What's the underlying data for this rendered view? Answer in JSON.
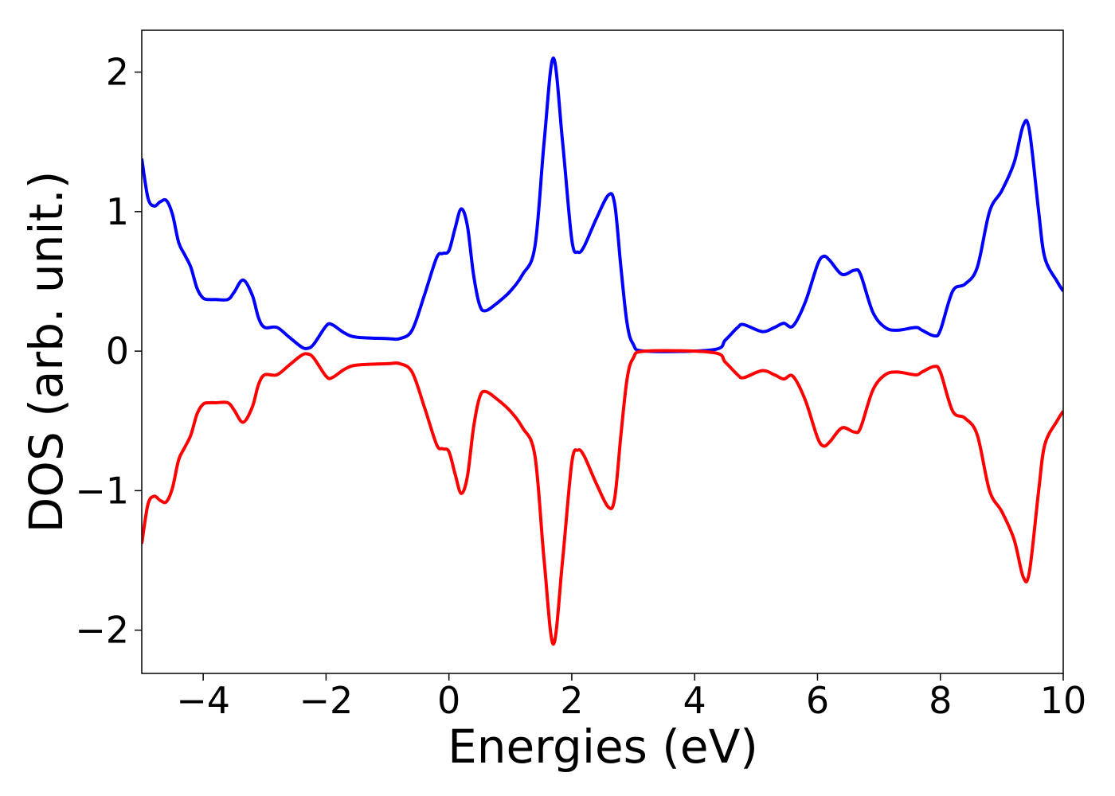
{
  "chart_data": {
    "type": "line",
    "xlabel": "Energies (eV)",
    "ylabel": "DOS (arb. unit.)",
    "x": [
      -5,
      -4.9,
      -4.8,
      -4.7,
      -4.6,
      -4.5,
      -4.4,
      -4.3,
      -4.2,
      -4.1,
      -4.0,
      -3.9,
      -3.8,
      -3.6,
      -3.5,
      -3.35,
      -3.2,
      -3.1,
      -3.0,
      -2.8,
      -2.6,
      -2.4,
      -2.3,
      -2.2,
      -2.0,
      -1.9,
      -1.7,
      -1.5,
      -1.0,
      -0.8,
      -0.6,
      -0.4,
      -0.2,
      -0.1,
      0.0,
      0.1,
      0.2,
      0.3,
      0.4,
      0.5,
      0.6,
      0.8,
      1.0,
      1.2,
      1.4,
      1.55,
      1.7,
      1.85,
      2.0,
      2.1,
      2.2,
      2.4,
      2.6,
      2.7,
      2.8,
      2.9,
      3.0,
      3.2,
      4.3,
      4.5,
      4.7,
      4.8,
      5.1,
      5.3,
      5.45,
      5.6,
      5.8,
      6.0,
      6.1,
      6.2,
      6.4,
      6.6,
      6.7,
      6.9,
      7.1,
      7.3,
      7.6,
      7.7,
      7.9,
      8.0,
      8.2,
      8.4,
      8.6,
      8.8,
      9.0,
      9.2,
      9.35,
      9.45,
      9.6,
      9.7,
      9.9,
      10
    ],
    "series": [
      {
        "color": "#0000ff",
        "values": [
          1.38,
          1.1,
          1.04,
          1.07,
          1.08,
          0.98,
          0.78,
          0.69,
          0.6,
          0.45,
          0.38,
          0.37,
          0.37,
          0.37,
          0.42,
          0.51,
          0.4,
          0.24,
          0.17,
          0.17,
          0.1,
          0.03,
          0.02,
          0.05,
          0.18,
          0.19,
          0.13,
          0.1,
          0.09,
          0.09,
          0.15,
          0.4,
          0.67,
          0.7,
          0.72,
          0.88,
          1.02,
          0.9,
          0.55,
          0.33,
          0.29,
          0.35,
          0.43,
          0.55,
          0.75,
          1.5,
          2.1,
          1.5,
          0.8,
          0.71,
          0.75,
          0.95,
          1.12,
          1.05,
          0.6,
          0.2,
          0.05,
          0.0,
          0.01,
          0.08,
          0.17,
          0.19,
          0.14,
          0.17,
          0.2,
          0.18,
          0.35,
          0.62,
          0.68,
          0.65,
          0.55,
          0.58,
          0.55,
          0.28,
          0.17,
          0.15,
          0.17,
          0.15,
          0.11,
          0.15,
          0.43,
          0.48,
          0.6,
          1.0,
          1.15,
          1.35,
          1.62,
          1.58,
          1.0,
          0.67,
          0.5,
          0.43
        ]
      },
      {
        "color": "#ff0000",
        "values": [
          -1.38,
          -1.1,
          -1.04,
          -1.07,
          -1.08,
          -0.98,
          -0.78,
          -0.69,
          -0.6,
          -0.45,
          -0.38,
          -0.37,
          -0.37,
          -0.37,
          -0.42,
          -0.51,
          -0.4,
          -0.24,
          -0.17,
          -0.17,
          -0.1,
          -0.03,
          -0.02,
          -0.05,
          -0.18,
          -0.19,
          -0.13,
          -0.1,
          -0.09,
          -0.09,
          -0.15,
          -0.4,
          -0.67,
          -0.7,
          -0.72,
          -0.88,
          -1.02,
          -0.9,
          -0.55,
          -0.33,
          -0.29,
          -0.35,
          -0.43,
          -0.55,
          -0.75,
          -1.5,
          -2.1,
          -1.5,
          -0.8,
          -0.71,
          -0.75,
          -0.95,
          -1.12,
          -1.05,
          -0.6,
          -0.2,
          -0.05,
          0.0,
          -0.01,
          -0.08,
          -0.17,
          -0.19,
          -0.14,
          -0.17,
          -0.2,
          -0.18,
          -0.35,
          -0.62,
          -0.68,
          -0.65,
          -0.55,
          -0.58,
          -0.55,
          -0.28,
          -0.17,
          -0.15,
          -0.17,
          -0.15,
          -0.11,
          -0.15,
          -0.43,
          -0.48,
          -0.6,
          -1.0,
          -1.15,
          -1.35,
          -1.62,
          -1.58,
          -1.0,
          -0.67,
          -0.5,
          -0.43
        ]
      }
    ],
    "xlim": [
      -5,
      10
    ],
    "ylim": [
      -2.31,
      2.3
    ],
    "xticks": [
      {
        "value": -4,
        "label": "−4"
      },
      {
        "value": -2,
        "label": "−2"
      },
      0,
      2,
      4,
      6,
      8,
      10
    ],
    "yticks": [
      {
        "value": -2,
        "label": "−2"
      },
      {
        "value": -1,
        "label": "−1"
      },
      0,
      1,
      2
    ]
  }
}
